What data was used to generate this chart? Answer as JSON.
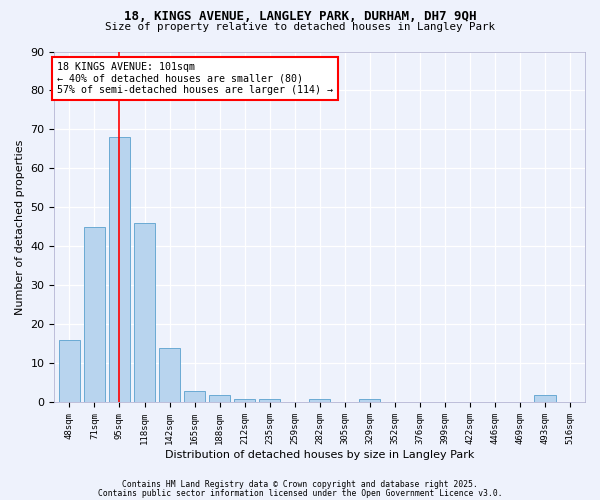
{
  "title1": "18, KINGS AVENUE, LANGLEY PARK, DURHAM, DH7 9QH",
  "title2": "Size of property relative to detached houses in Langley Park",
  "xlabel": "Distribution of detached houses by size in Langley Park",
  "ylabel": "Number of detached properties",
  "categories": [
    "48sqm",
    "71sqm",
    "95sqm",
    "118sqm",
    "142sqm",
    "165sqm",
    "188sqm",
    "212sqm",
    "235sqm",
    "259sqm",
    "282sqm",
    "305sqm",
    "329sqm",
    "352sqm",
    "376sqm",
    "399sqm",
    "422sqm",
    "446sqm",
    "469sqm",
    "493sqm",
    "516sqm"
  ],
  "values": [
    16,
    45,
    68,
    46,
    14,
    3,
    2,
    1,
    1,
    0,
    1,
    0,
    1,
    0,
    0,
    0,
    0,
    0,
    0,
    2,
    0
  ],
  "bar_color": "#b8d4ee",
  "bar_edge_color": "#6aaad4",
  "vline_x": 2.0,
  "vline_color": "red",
  "annotation_text": "18 KINGS AVENUE: 101sqm\n← 40% of detached houses are smaller (80)\n57% of semi-detached houses are larger (114) →",
  "annotation_box_color": "white",
  "annotation_box_edge_color": "red",
  "ylim": [
    0,
    90
  ],
  "yticks": [
    0,
    10,
    20,
    30,
    40,
    50,
    60,
    70,
    80,
    90
  ],
  "background_color": "#eef2fc",
  "footer1": "Contains HM Land Registry data © Crown copyright and database right 2025.",
  "footer2": "Contains public sector information licensed under the Open Government Licence v3.0."
}
